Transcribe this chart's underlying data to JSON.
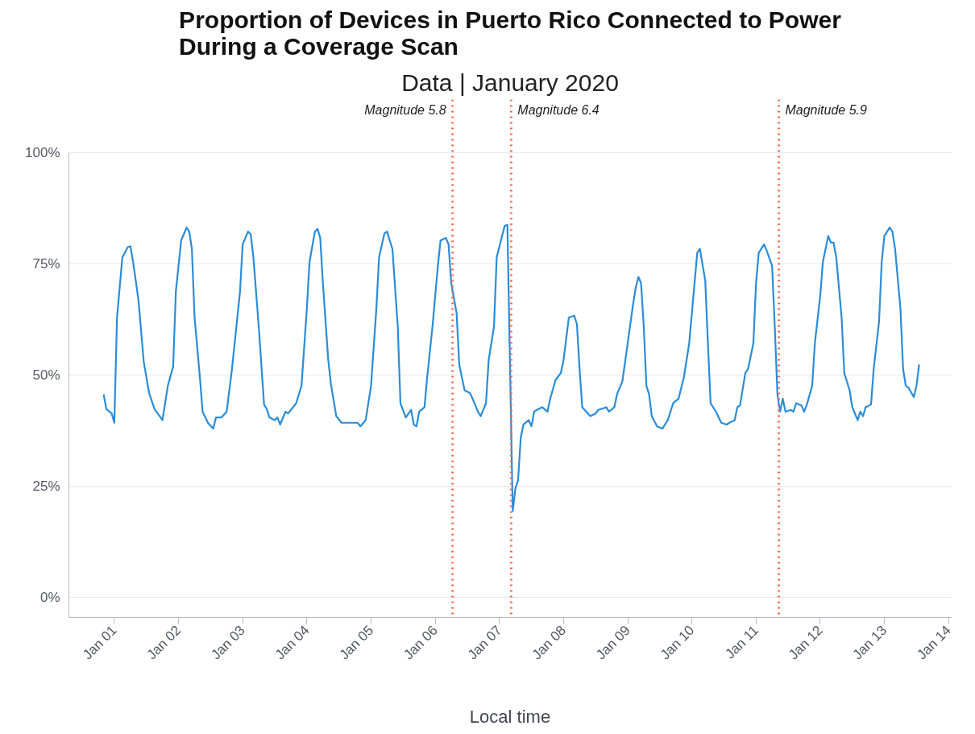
{
  "chart_data": {
    "type": "line",
    "title": "Proportion of Devices in Puerto Rico Connected to Power\nDuring a Coverage Scan",
    "subtitle": "Data | January 2020",
    "xlabel": "Local time",
    "xlim": [
      "2019-12-31T07:00",
      "2020-01-14T01:00"
    ],
    "ylim": [
      -4.5,
      112
    ],
    "xticks": [
      {
        "value": "2020-01-01",
        "label": "Jan 01"
      },
      {
        "value": "2020-01-02",
        "label": "Jan 02"
      },
      {
        "value": "2020-01-03",
        "label": "Jan 03"
      },
      {
        "value": "2020-01-04",
        "label": "Jan 04"
      },
      {
        "value": "2020-01-05",
        "label": "Jan 05"
      },
      {
        "value": "2020-01-06",
        "label": "Jan 06"
      },
      {
        "value": "2020-01-07",
        "label": "Jan 07"
      },
      {
        "value": "2020-01-08",
        "label": "Jan 08"
      },
      {
        "value": "2020-01-09",
        "label": "Jan 09"
      },
      {
        "value": "2020-01-10",
        "label": "Jan 10"
      },
      {
        "value": "2020-01-11",
        "label": "Jan 11"
      },
      {
        "value": "2020-01-12",
        "label": "Jan 12"
      },
      {
        "value": "2020-01-13",
        "label": "Jan 13"
      },
      {
        "value": "2020-01-14",
        "label": "Jan 14"
      }
    ],
    "yticks": [
      {
        "value": 0,
        "label": "0%"
      },
      {
        "value": 25,
        "label": "25%"
      },
      {
        "value": 50,
        "label": "50%"
      },
      {
        "value": 75,
        "label": "75%"
      },
      {
        "value": 100,
        "label": "100%"
      }
    ],
    "grid": "y",
    "marker": "none",
    "line_style": "solid",
    "ref_lines": [
      {
        "axis": "x",
        "value": "2020-01-06T06:30",
        "label": "Magnitude 5.8",
        "color": "#f26a4f",
        "line_style": "dotted"
      },
      {
        "axis": "x",
        "value": "2020-01-07T04:24",
        "label": "Magnitude 6.4",
        "color": "#f26a4f",
        "line_style": "dotted"
      },
      {
        "axis": "x",
        "value": "2020-01-11T08:30",
        "label": "Magnitude 5.9",
        "color": "#f26a4f",
        "line_style": "dotted"
      }
    ],
    "x": [
      "2019-12-31T20:00",
      "2019-12-31T21:00",
      "2019-12-31T23:00",
      "2020-01-01T00:00",
      "2020-01-01T01:00",
      "2020-01-01T03:00",
      "2020-01-01T05:00",
      "2020-01-01T06:00",
      "2020-01-01T07:00",
      "2020-01-01T09:00",
      "2020-01-01T11:00",
      "2020-01-01T13:00",
      "2020-01-01T15:00",
      "2020-01-01T18:00",
      "2020-01-01T20:00",
      "2020-01-01T22:00",
      "2020-01-01T23:00",
      "2020-01-02T01:00",
      "2020-01-02T03:00",
      "2020-01-02T04:00",
      "2020-01-02T05:00",
      "2020-01-02T06:00",
      "2020-01-02T08:00",
      "2020-01-02T09:00",
      "2020-01-02T11:00",
      "2020-01-02T13:00",
      "2020-01-02T14:00",
      "2020-01-02T16:00",
      "2020-01-02T18:00",
      "2020-01-02T20:00",
      "2020-01-02T23:00",
      "2020-01-03T00:00",
      "2020-01-03T02:00",
      "2020-01-03T03:00",
      "2020-01-03T04:00",
      "2020-01-03T06:00",
      "2020-01-03T08:00",
      "2020-01-03T09:00",
      "2020-01-03T10:00",
      "2020-01-03T12:00",
      "2020-01-03T13:00",
      "2020-01-03T14:00",
      "2020-01-03T16:00",
      "2020-01-03T17:00",
      "2020-01-03T20:00",
      "2020-01-03T22:00",
      "2020-01-04T00:00",
      "2020-01-04T01:00",
      "2020-01-04T03:00",
      "2020-01-04T04:00",
      "2020-01-04T05:00",
      "2020-01-04T06:00",
      "2020-01-04T08:00",
      "2020-01-04T09:00",
      "2020-01-04T11:00",
      "2020-01-04T13:00",
      "2020-01-04T16:00",
      "2020-01-04T19:00",
      "2020-01-04T20:00",
      "2020-01-04T22:00",
      "2020-01-05T00:00",
      "2020-01-05T02:00",
      "2020-01-05T03:00",
      "2020-01-05T05:00",
      "2020-01-05T06:00",
      "2020-01-05T07:00",
      "2020-01-05T08:00",
      "2020-01-05T10:00",
      "2020-01-05T11:00",
      "2020-01-05T13:00",
      "2020-01-05T15:00",
      "2020-01-05T16:00",
      "2020-01-05T17:00",
      "2020-01-05T18:00",
      "2020-01-05T20:00",
      "2020-01-05T21:00",
      "2020-01-05T23:00",
      "2020-01-06T01:00",
      "2020-01-06T02:00",
      "2020-01-06T04:00",
      "2020-01-06T05:00",
      "2020-01-06T06:00",
      "2020-01-06T08:00",
      "2020-01-06T09:00",
      "2020-01-06T11:00",
      "2020-01-06T13:00",
      "2020-01-06T14:00",
      "2020-01-06T16:00",
      "2020-01-06T17:00",
      "2020-01-06T19:00",
      "2020-01-06T20:00",
      "2020-01-06T22:00",
      "2020-01-06T23:00",
      "2020-01-07T01:00",
      "2020-01-07T02:00",
      "2020-01-07T03:00",
      "2020-01-07T05:00",
      "2020-01-07T06:00",
      "2020-01-07T07:00",
      "2020-01-07T08:00",
      "2020-01-07T09:00",
      "2020-01-07T11:00",
      "2020-01-07T12:00",
      "2020-01-07T13:00",
      "2020-01-07T14:00",
      "2020-01-07T16:00",
      "2020-01-07T18:00",
      "2020-01-07T19:00",
      "2020-01-07T21:00",
      "2020-01-07T23:00",
      "2020-01-08T00:00",
      "2020-01-08T02:00",
      "2020-01-08T04:00",
      "2020-01-08T05:00",
      "2020-01-08T06:00",
      "2020-01-08T07:00",
      "2020-01-08T10:00",
      "2020-01-08T12:00",
      "2020-01-08T13:00",
      "2020-01-08T16:00",
      "2020-01-08T17:00",
      "2020-01-08T19:00",
      "2020-01-08T20:00",
      "2020-01-08T22:00",
      "2020-01-09T00:00",
      "2020-01-09T02:00",
      "2020-01-09T03:00",
      "2020-01-09T04:00",
      "2020-01-09T05:00",
      "2020-01-09T06:00",
      "2020-01-09T07:00",
      "2020-01-09T08:00",
      "2020-01-09T09:00",
      "2020-01-09T11:00",
      "2020-01-09T13:00",
      "2020-01-09T15:00",
      "2020-01-09T16:00",
      "2020-01-09T17:00",
      "2020-01-09T19:00",
      "2020-01-09T21:00",
      "2020-01-09T23:00",
      "2020-01-10T01:00",
      "2020-01-10T02:00",
      "2020-01-10T03:00",
      "2020-01-10T05:00",
      "2020-01-10T06:00",
      "2020-01-10T07:00",
      "2020-01-10T09:00",
      "2020-01-10T11:00",
      "2020-01-10T13:00",
      "2020-01-10T14:00",
      "2020-01-10T16:00",
      "2020-01-10T17:00",
      "2020-01-10T18:00",
      "2020-01-10T20:00",
      "2020-01-10T21:00",
      "2020-01-10T23:00",
      "2020-01-11T00:00",
      "2020-01-11T01:00",
      "2020-01-11T03:00",
      "2020-01-11T04:00",
      "2020-01-11T06:00",
      "2020-01-11T07:00",
      "2020-01-11T08:00",
      "2020-01-11T09:00",
      "2020-01-11T10:00",
      "2020-01-11T11:00",
      "2020-01-11T13:00",
      "2020-01-11T14:00",
      "2020-01-11T15:00",
      "2020-01-11T17:00",
      "2020-01-11T18:00",
      "2020-01-11T19:00",
      "2020-01-11T21:00",
      "2020-01-11T22:00",
      "2020-01-12T00:00",
      "2020-01-12T01:00",
      "2020-01-12T03:00",
      "2020-01-12T04:00",
      "2020-01-12T05:00",
      "2020-01-12T06:00",
      "2020-01-12T08:00",
      "2020-01-12T09:00",
      "2020-01-12T11:00",
      "2020-01-12T12:00",
      "2020-01-12T14:00",
      "2020-01-12T15:00",
      "2020-01-12T16:00",
      "2020-01-12T17:00",
      "2020-01-12T19:00",
      "2020-01-12T20:00",
      "2020-01-12T22:00",
      "2020-01-12T23:00",
      "2020-01-13T00:00",
      "2020-01-13T02:00",
      "2020-01-13T03:00",
      "2020-01-13T04:00",
      "2020-01-13T06:00",
      "2020-01-13T07:00",
      "2020-01-13T08:00",
      "2020-01-13T09:00",
      "2020-01-13T11:00",
      "2020-01-13T12:00",
      "2020-01-13T13:00"
    ],
    "series": [
      {
        "color": "#2b8cd8",
        "values": [
          45.7,
          42.4,
          41.4,
          39.3,
          63,
          76.5,
          78.8,
          79,
          75.5,
          67,
          53,
          46,
          42.4,
          39.9,
          47.6,
          52,
          68.8,
          80.3,
          83.2,
          82.3,
          78.4,
          63,
          49.5,
          41.8,
          39.3,
          38,
          40.5,
          40.5,
          41.8,
          51.4,
          68.8,
          79.4,
          82.3,
          81.7,
          76.5,
          61,
          43.4,
          42.4,
          40.5,
          39.9,
          40.5,
          38.9,
          41.8,
          41.4,
          43.7,
          47.6,
          65,
          75.5,
          82.3,
          82.9,
          80.9,
          70.7,
          53.4,
          48,
          40.8,
          39.3,
          39.3,
          39.3,
          38.5,
          39.9,
          47.6,
          65,
          76.5,
          81.9,
          82.3,
          80.3,
          78.4,
          61,
          43.7,
          40.5,
          42.2,
          38.9,
          38.5,
          41.8,
          42.8,
          49.5,
          61,
          74.6,
          80.3,
          80.9,
          79.4,
          70.7,
          64,
          52.4,
          46.6,
          46,
          44.7,
          41.8,
          40.8,
          43.7,
          53.4,
          61,
          76.5,
          81.3,
          83.6,
          83.8,
          19.5,
          24.5,
          26.4,
          36,
          38.9,
          39.9,
          38.5,
          41.8,
          42.2,
          42.8,
          41.8,
          44.7,
          48.9,
          50.5,
          53.4,
          63,
          63.4,
          61.5,
          51.4,
          42.8,
          40.8,
          41.4,
          42.2,
          42.8,
          41.8,
          42.8,
          45.7,
          48.6,
          57.2,
          65.9,
          69.7,
          72.1,
          70.7,
          61,
          47.6,
          45.7,
          40.8,
          38.5,
          38,
          39.9,
          41.8,
          43.7,
          44.7,
          49.5,
          57.2,
          70.7,
          77.5,
          78.4,
          71.3,
          57.2,
          43.7,
          41.8,
          39.3,
          38.9,
          39.3,
          39.9,
          42.8,
          43.2,
          50.5,
          51.4,
          57.2,
          70.7,
          77.5,
          79.4,
          78,
          74.6,
          61,
          45.7,
          41.8,
          44.7,
          41.8,
          42.2,
          41.8,
          43.7,
          43.2,
          41.8,
          43.4,
          47.6,
          57.2,
          67.8,
          75.5,
          81.3,
          79.8,
          79.8,
          76.5,
          63,
          50.5,
          46.6,
          42.8,
          39.9,
          41.8,
          40.8,
          42.8,
          43.4,
          51.4,
          62,
          75.5,
          81.3,
          83.2,
          82.3,
          78.4,
          65,
          51.4,
          47.6,
          47.2,
          45.1,
          47.6,
          52.4
        ]
      }
    ]
  }
}
